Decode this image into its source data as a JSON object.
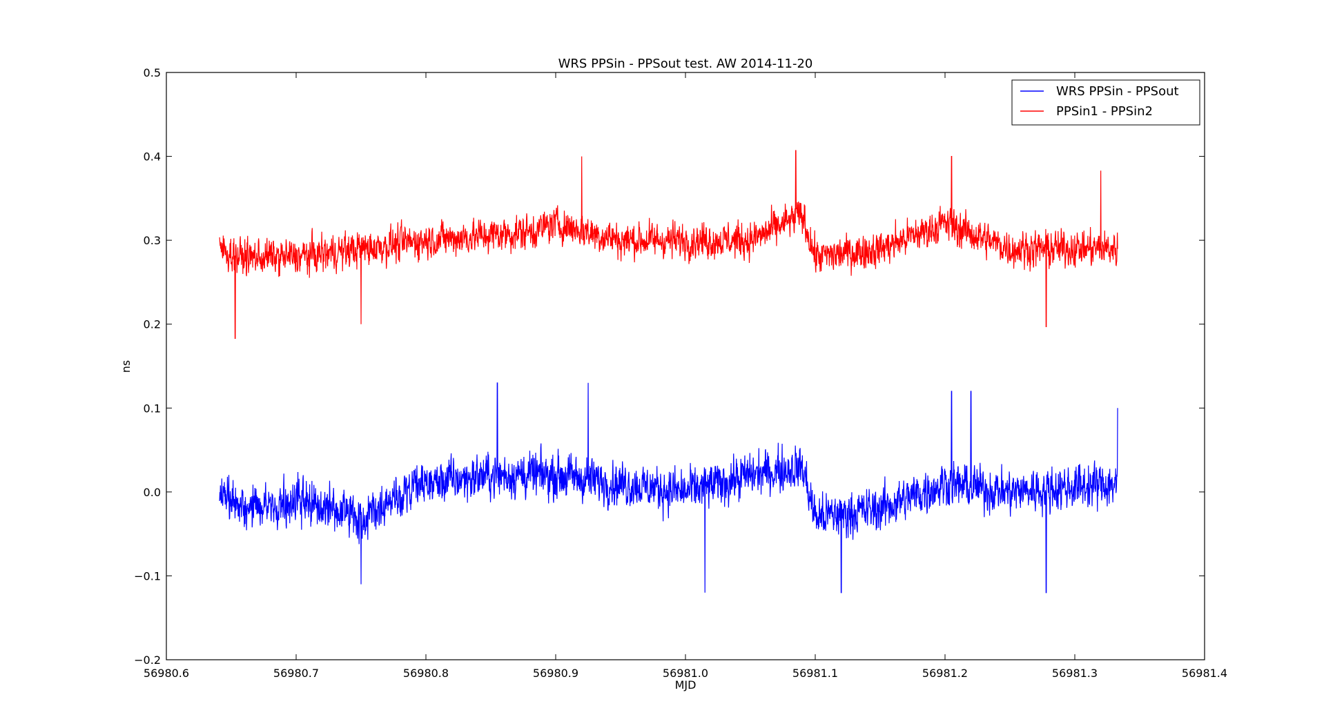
{
  "chart_data": {
    "type": "line",
    "title": "WRS PPSin - PPSout test. AW 2014-11-20",
    "xlabel": "MJD",
    "ylabel": "ns",
    "xlim": [
      56980.6,
      56981.4
    ],
    "ylim": [
      -0.2,
      0.5
    ],
    "x_ticks": [
      56980.6,
      56980.7,
      56980.8,
      56980.9,
      56981.0,
      56981.1,
      56981.2,
      56981.3,
      56981.4
    ],
    "x_tick_labels": [
      "56980.6",
      "56980.7",
      "56980.8",
      "56980.9",
      "56981.0",
      "56981.1",
      "56981.2",
      "56981.3",
      "56981.4"
    ],
    "y_ticks": [
      -0.2,
      -0.1,
      0.0,
      0.1,
      0.2,
      0.3,
      0.4,
      0.5
    ],
    "y_tick_labels": [
      "−0.2",
      "−0.1",
      "0.0",
      "0.1",
      "0.2",
      "0.3",
      "0.4",
      "0.5"
    ],
    "grid": false,
    "legend_position": "top-right",
    "series": [
      {
        "name": "WRS PPSin - PPSout",
        "color": "#0000ff",
        "x_range": [
          56980.641,
          56981.333
        ],
        "trend": [
          [
            56980.641,
            0.0
          ],
          [
            56980.66,
            -0.02
          ],
          [
            56980.7,
            -0.01
          ],
          [
            56980.75,
            -0.03
          ],
          [
            56980.8,
            0.01
          ],
          [
            56980.85,
            0.02
          ],
          [
            56980.9,
            0.02
          ],
          [
            56980.95,
            0.01
          ],
          [
            56981.0,
            0.0
          ],
          [
            56981.05,
            0.02
          ],
          [
            56981.09,
            0.03
          ],
          [
            56981.1,
            -0.03
          ],
          [
            56981.15,
            -0.02
          ],
          [
            56981.2,
            0.01
          ],
          [
            56981.25,
            0.0
          ],
          [
            56981.333,
            0.01
          ]
        ],
        "noise_amplitude": 0.05,
        "spikes": [
          [
            56980.75,
            -0.11
          ],
          [
            56980.855,
            0.13
          ],
          [
            56980.925,
            0.13
          ],
          [
            56981.015,
            -0.12
          ],
          [
            56981.12,
            -0.12
          ],
          [
            56981.205,
            0.12
          ],
          [
            56981.22,
            0.12
          ],
          [
            56981.278,
            -0.12
          ],
          [
            56981.333,
            0.1
          ]
        ]
      },
      {
        "name": "PPSin1 - PPSin2",
        "color": "#ff0000",
        "x_range": [
          56980.641,
          56981.333
        ],
        "trend": [
          [
            56980.641,
            0.29
          ],
          [
            56980.655,
            0.28
          ],
          [
            56980.7,
            0.28
          ],
          [
            56980.75,
            0.29
          ],
          [
            56980.8,
            0.3
          ],
          [
            56980.88,
            0.31
          ],
          [
            56980.9,
            0.32
          ],
          [
            56980.95,
            0.3
          ],
          [
            56981.0,
            0.3
          ],
          [
            56981.05,
            0.3
          ],
          [
            56981.09,
            0.33
          ],
          [
            56981.1,
            0.28
          ],
          [
            56981.15,
            0.29
          ],
          [
            56981.2,
            0.32
          ],
          [
            56981.25,
            0.29
          ],
          [
            56981.333,
            0.29
          ]
        ],
        "noise_amplitude": 0.04,
        "spikes": [
          [
            56980.653,
            0.183
          ],
          [
            56980.75,
            0.2
          ],
          [
            56980.92,
            0.4
          ],
          [
            56981.085,
            0.407
          ],
          [
            56981.205,
            0.4
          ],
          [
            56981.278,
            0.197
          ],
          [
            56981.32,
            0.383
          ]
        ]
      }
    ]
  }
}
